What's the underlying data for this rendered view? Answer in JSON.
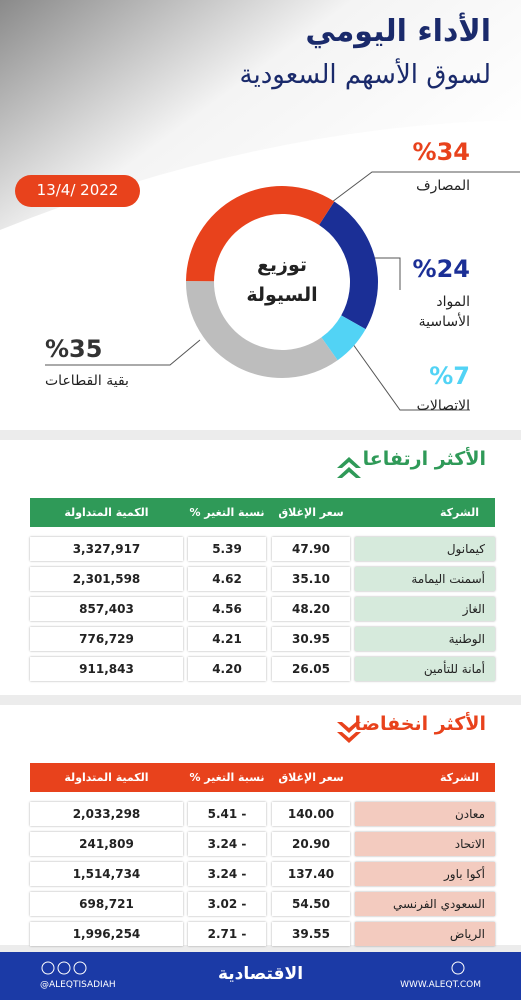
{
  "header": {
    "title": "الأداء اليومي",
    "subtitle": "لسوق الأسهم السعودية",
    "date": "13/4/ 2022"
  },
  "chart_data": {
    "type": "pie",
    "title": "توزيع السيولة",
    "categories": [
      "المواد الأساسية",
      "الاتصالات",
      "بقية القطاعات",
      "المصارف"
    ],
    "values": [
      24,
      7,
      35,
      34
    ],
    "value_labels": [
      "%24",
      "%7",
      "%35",
      "%34"
    ],
    "colors": [
      "#1b2f96",
      "#52d3f5",
      "#bdbdbd",
      "#e8421c"
    ]
  },
  "gainers": {
    "title": "الأكثر ارتفاعا",
    "columns": [
      "الشركة",
      "سعر الإغلاق",
      "نسبة التغير %",
      "الكمية المتداولة"
    ],
    "rows": [
      [
        "كيمانول",
        "47.90",
        "5.39",
        "3,327,917"
      ],
      [
        "أسمنت اليمامة",
        "35.10",
        "4.62",
        "2,301,598"
      ],
      [
        "الغاز",
        "48.20",
        "4.56",
        "857,403"
      ],
      [
        "الوطنية",
        "30.95",
        "4.21",
        "776,729"
      ],
      [
        "أمانة للتأمين",
        "26.05",
        "4.20",
        "911,843"
      ]
    ]
  },
  "losers": {
    "title": "الأكثر انخفاضا",
    "columns": [
      "الشركة",
      "سعر الإغلاق",
      "نسبة التغير %",
      "الكمية المتداولة"
    ],
    "rows": [
      [
        "معادن",
        "140.00",
        "- 5.41",
        "2,033,298"
      ],
      [
        "الاتحاد",
        "20.90",
        "- 3.24",
        "241,809"
      ],
      [
        "أكوا باور",
        "137.40",
        "- 3.24",
        "1,514,734"
      ],
      [
        "السعودي الفرنسي",
        "54.50",
        "- 3.02",
        "698,721"
      ],
      [
        "الرياض",
        "39.55",
        "- 2.71",
        "1,996,254"
      ]
    ]
  },
  "footer": {
    "handle": "@ALEQTISADIAH",
    "brand": "الاقتصادية",
    "website": "WWW.ALEQT.COM"
  }
}
